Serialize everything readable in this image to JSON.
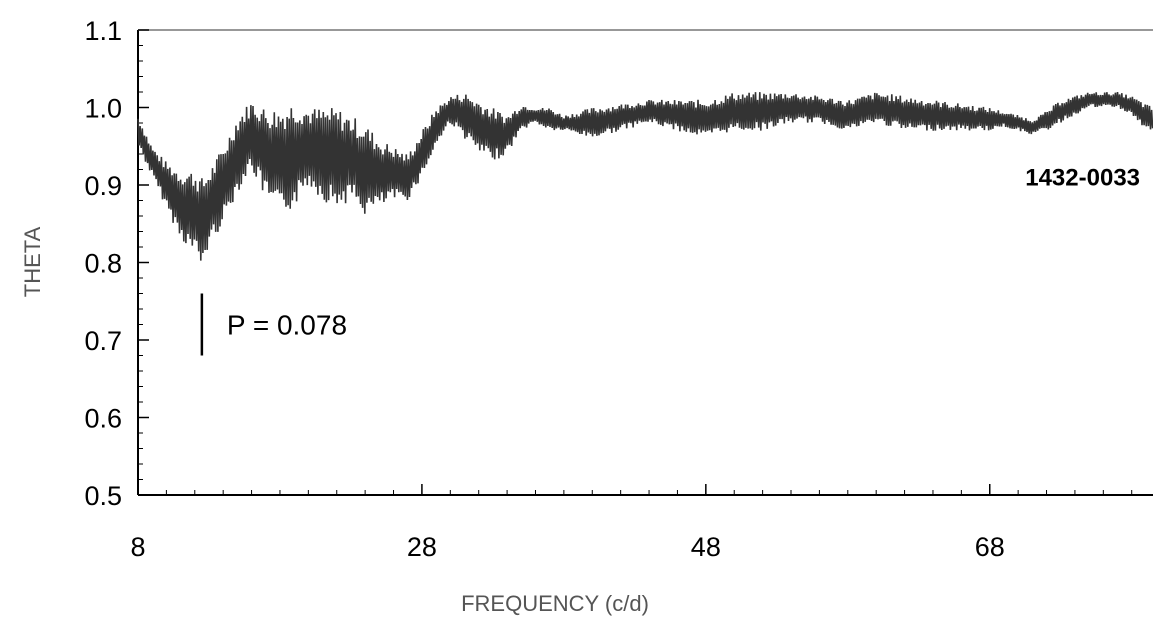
{
  "chart_data": {
    "type": "line",
    "title": "",
    "xlabel": "FREQUENCY (c/d)",
    "ylabel": "THETA",
    "xlim": [
      8,
      79.5
    ],
    "ylim": [
      0.5,
      1.1
    ],
    "x_ticks": [
      8,
      28,
      48,
      68
    ],
    "x_tick_labels": [
      "8",
      "28",
      "48",
      "68"
    ],
    "y_ticks": [
      0.5,
      0.6,
      0.7,
      0.8,
      0.9,
      1.0,
      1.1
    ],
    "y_tick_labels": [
      "0.5",
      "0.6",
      "0.7",
      "0.8",
      "0.9",
      "1.0",
      "1.1"
    ],
    "grid": false,
    "series_color": "#333333",
    "envelope": {
      "x": [
        8,
        9,
        10,
        11,
        12,
        12.5,
        13,
        14,
        15,
        16,
        17,
        18,
        19,
        20,
        21,
        22,
        23,
        24,
        25,
        26,
        27,
        28,
        29,
        30,
        31,
        32,
        33,
        34,
        35,
        36,
        37,
        38,
        40,
        42,
        44,
        46,
        48,
        50,
        52,
        54,
        56,
        58,
        60,
        62,
        64,
        66,
        68,
        69,
        70,
        71,
        72,
        73,
        74,
        75,
        76,
        77,
        78,
        79,
        79.5
      ],
      "upper": [
        0.99,
        0.95,
        0.93,
        0.92,
        0.92,
        0.91,
        0.92,
        0.95,
        0.99,
        1.01,
        1.0,
        1.0,
        1.01,
        1.0,
        1.0,
        1.0,
        0.99,
        0.98,
        0.96,
        0.95,
        0.94,
        0.97,
        1.0,
        1.015,
        1.02,
        1.01,
        1.0,
        0.99,
        1.005,
        1.0,
        1.0,
        0.99,
        1.0,
        1.005,
        1.01,
        1.01,
        1.01,
        1.02,
        1.02,
        1.02,
        1.015,
        1.01,
        1.02,
        1.015,
        1.01,
        1.005,
        1.0,
        0.995,
        0.99,
        0.985,
        0.995,
        1.01,
        1.015,
        1.02,
        1.02,
        1.02,
        1.015,
        1.005,
        1.0
      ],
      "lower": [
        0.95,
        0.91,
        0.87,
        0.83,
        0.81,
        0.79,
        0.82,
        0.85,
        0.89,
        0.92,
        0.88,
        0.86,
        0.87,
        0.9,
        0.88,
        0.87,
        0.88,
        0.86,
        0.87,
        0.88,
        0.88,
        0.91,
        0.95,
        0.98,
        0.96,
        0.94,
        0.93,
        0.94,
        0.97,
        0.98,
        0.97,
        0.97,
        0.96,
        0.97,
        0.98,
        0.97,
        0.96,
        0.97,
        0.97,
        0.98,
        0.98,
        0.97,
        0.98,
        0.97,
        0.97,
        0.97,
        0.97,
        0.975,
        0.97,
        0.965,
        0.97,
        0.98,
        0.99,
        1.0,
        1.0,
        1.0,
        0.99,
        0.97,
        0.97
      ]
    },
    "annotations": [
      {
        "text": "P = 0.078",
        "marker_x": 12.5,
        "marker_y_range": [
          0.68,
          0.76
        ],
        "text_y": 0.72
      },
      {
        "text": "1432-0033",
        "x": 70.5,
        "y": 0.91
      }
    ]
  }
}
